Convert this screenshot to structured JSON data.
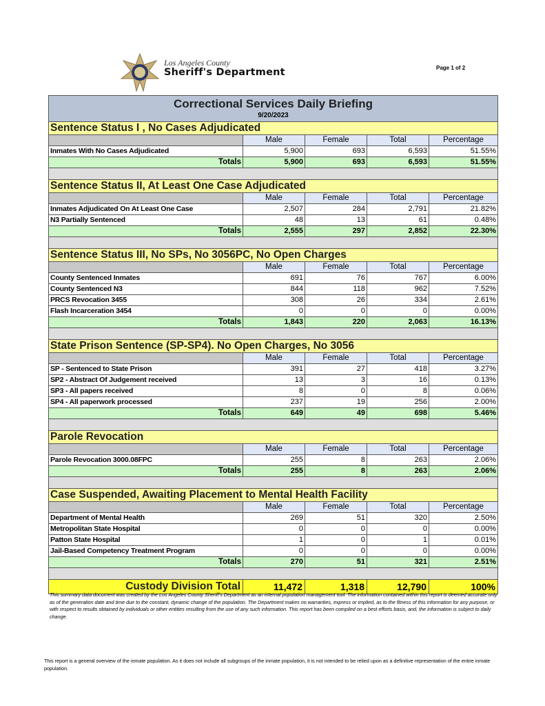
{
  "header": {
    "logo_line1": "Los Angeles County",
    "logo_line2": "Sheriff's Department",
    "page_number": "Page 1 of 2"
  },
  "report": {
    "title": "Correctional Services Daily Briefing",
    "date": "9/20/2023",
    "columns": [
      "Male",
      "Female",
      "Total",
      "Percentage"
    ],
    "totals_label": "Totals",
    "sections": [
      {
        "title": "Sentence Status I , No Cases Adjudicated",
        "rows": [
          [
            "Inmates With No Cases Adjudicated",
            "5,900",
            "693",
            "6,593",
            "51.55%"
          ]
        ],
        "totals": [
          "5,900",
          "693",
          "6,593",
          "51.55%"
        ]
      },
      {
        "title": "Sentence Status II, At Least One Case Adjudicated",
        "rows": [
          [
            "Inmates Adjudicated On At Least One Case",
            "2,507",
            "284",
            "2,791",
            "21.82%"
          ],
          [
            "N3 Partially Sentenced",
            "48",
            "13",
            "61",
            "0.48%"
          ]
        ],
        "totals": [
          "2,555",
          "297",
          "2,852",
          "22.30%"
        ]
      },
      {
        "title": "Sentence Status III, No SPs, No 3056PC, No Open Charges",
        "rows": [
          [
            "County Sentenced Inmates",
            "691",
            "76",
            "767",
            "6.00%"
          ],
          [
            "County Sentenced N3",
            "844",
            "118",
            "962",
            "7.52%"
          ],
          [
            "PRCS Revocation 3455",
            "308",
            "26",
            "334",
            "2.61%"
          ],
          [
            "Flash Incarceration 3454",
            "0",
            "0",
            "0",
            "0.00%"
          ]
        ],
        "totals": [
          "1,843",
          "220",
          "2,063",
          "16.13%"
        ]
      },
      {
        "title": "State Prison Sentence (SP-SP4). No Open Charges, No 3056",
        "rows": [
          [
            "SP - Sentenced to State Prison",
            "391",
            "27",
            "418",
            "3.27%"
          ],
          [
            "SP2 - Abstract Of Judgement received",
            "13",
            "3",
            "16",
            "0.13%"
          ],
          [
            "SP3 - All papers received",
            "8",
            "0",
            "8",
            "0.06%"
          ],
          [
            "SP4 - All paperwork processed",
            "237",
            "19",
            "256",
            "2.00%"
          ]
        ],
        "totals": [
          "649",
          "49",
          "698",
          "5.46%"
        ]
      },
      {
        "title": "Parole Revocation",
        "rows": [
          [
            "Parole Revocation 3000.08FPC",
            "255",
            "8",
            "263",
            "2.06%"
          ]
        ],
        "totals": [
          "255",
          "8",
          "263",
          "2.06%"
        ]
      },
      {
        "title": "Case Suspended, Awaiting Placement to Mental Health Facility",
        "rows": [
          [
            "Department of Mental Health",
            "269",
            "51",
            "320",
            "2.50%"
          ],
          [
            "Metropolitan State Hospital",
            "0",
            "0",
            "0",
            "0.00%"
          ],
          [
            "Patton State Hospital",
            "1",
            "0",
            "1",
            "0.01%"
          ],
          [
            "Jail-Based Competency Treatment Program",
            "0",
            "0",
            "0",
            "0.00%"
          ]
        ],
        "totals": [
          "270",
          "51",
          "321",
          "2.51%"
        ]
      }
    ],
    "grand_total": {
      "label": "Custody Division Total",
      "values": [
        "11,472",
        "1,318",
        "12,790",
        "100%"
      ]
    }
  },
  "disclaimer": "This summary data document was created by the Los Angeles County Sheriff's Department as an internal population management tool.  The information contained within this report is deemed accurate only as of the generation date and time due to the constant, dynamic change of the population.  The Department makes no warranties, express or implied, as to the fitness of this information for any purpose, or with respect to results obtained by individuals or other entities resulting from the use of any such information.  This report has been compiled on a best efforts basis, and, the information is subject to daily change.",
  "footnote": "This report is a general overview of the inmate population.  As it does not include all subgroups of the inmate population, it is not intended to be relied upon as a definitive representation of the entire inmate population."
}
